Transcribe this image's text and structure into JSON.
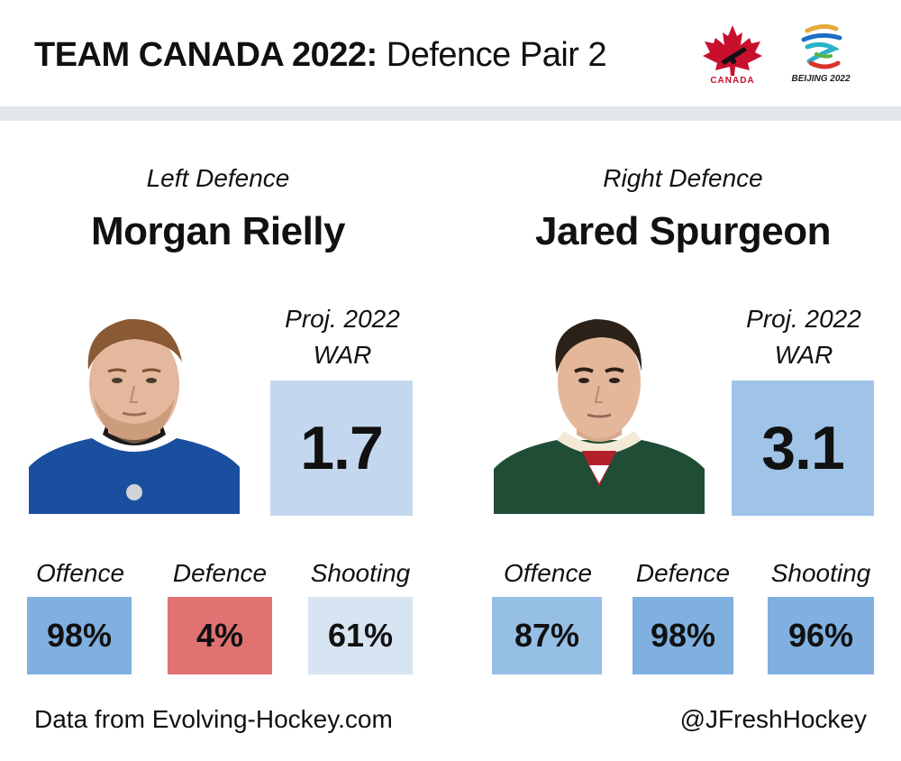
{
  "header": {
    "title_bold": "TEAM CANADA 2022:",
    "title_light": "Defence Pair 2",
    "logos": {
      "canada_wordmark": "CANADA",
      "beijing_wordmark": "BEIJING 2022"
    }
  },
  "players": [
    {
      "position": "Left Defence",
      "name": "Morgan Rielly",
      "war_label_line1": "Proj. 2022",
      "war_label_line2": "WAR",
      "war_value": "1.7",
      "war_color": "#c3d8ee",
      "jersey_color": "#1a4fa0",
      "stats": [
        {
          "label": "Offence",
          "value": "98%",
          "color": "#7fb0e0"
        },
        {
          "label": "Defence",
          "value": "4%",
          "color": "#e07272"
        },
        {
          "label": "Shooting",
          "value": "61%",
          "color": "#d7e4f1"
        }
      ]
    },
    {
      "position": "Right Defence",
      "name": "Jared Spurgeon",
      "war_label_line1": "Proj. 2022",
      "war_label_line2": "WAR",
      "war_value": "3.1",
      "war_color": "#9fc4e8",
      "jersey_color": "#1f4d36",
      "stats": [
        {
          "label": "Offence",
          "value": "87%",
          "color": "#96bfe6"
        },
        {
          "label": "Defence",
          "value": "98%",
          "color": "#7fb0e0"
        },
        {
          "label": "Shooting",
          "value": "96%",
          "color": "#7fb0e0"
        }
      ]
    }
  ],
  "footer": {
    "source": "Data from Evolving-Hockey.com",
    "handle": "@JFreshHockey"
  }
}
